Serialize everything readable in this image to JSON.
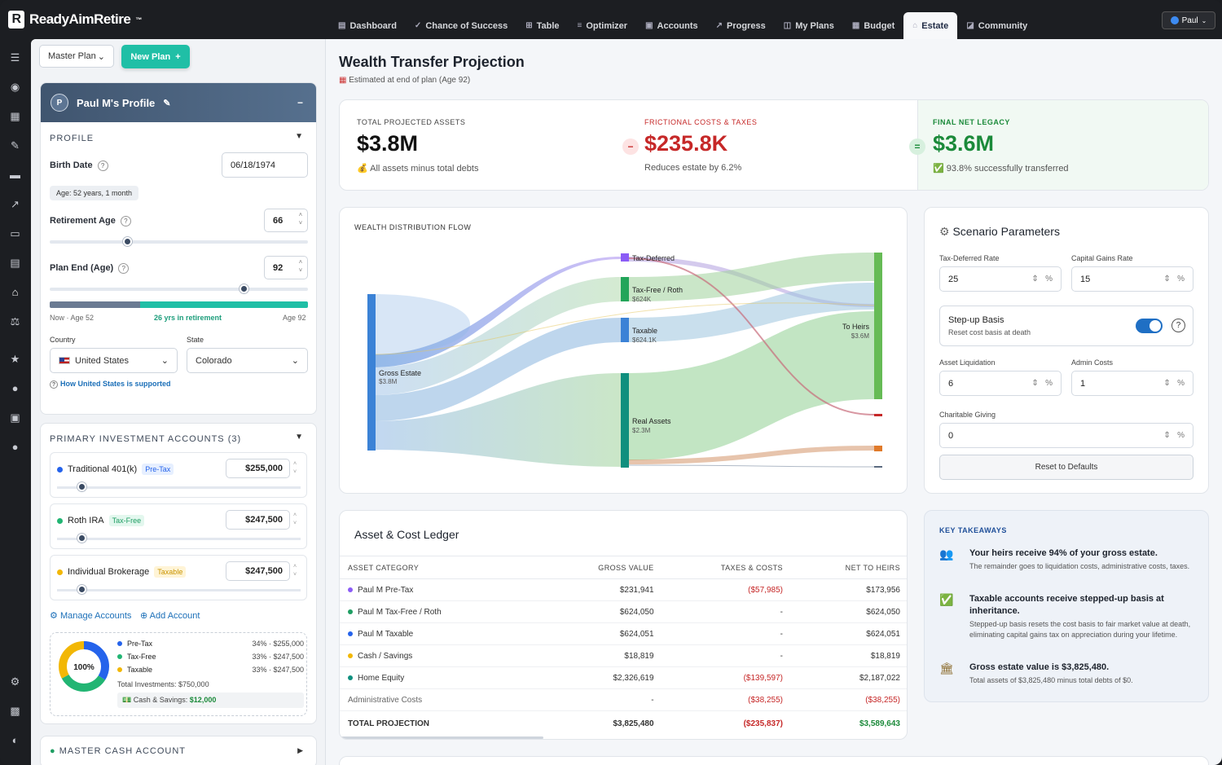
{
  "app": {
    "name": "ReadyAimRetire",
    "trademark": "™",
    "user": "Paul"
  },
  "nav": [
    {
      "icon": "▤",
      "label": "Dashboard"
    },
    {
      "icon": "✓",
      "label": "Chance of Success"
    },
    {
      "icon": "⊞",
      "label": "Table"
    },
    {
      "icon": "≡",
      "label": "Optimizer"
    },
    {
      "icon": "▣",
      "label": "Accounts"
    },
    {
      "icon": "↗",
      "label": "Progress"
    },
    {
      "icon": "◫",
      "label": "My Plans"
    },
    {
      "icon": "▦",
      "label": "Budget"
    },
    {
      "icon": "⌂",
      "label": "Estate"
    },
    {
      "icon": "◪",
      "label": "Community"
    }
  ],
  "sidebar": {
    "plan_select": "Master Plan",
    "new_plan": "New Plan",
    "profile": {
      "avatar": "P",
      "name": "Paul M's Profile",
      "section": "PROFILE",
      "birth_label": "Birth Date",
      "birth_value": "06/18/1974",
      "age": "Age: 52 years, 1 month",
      "retire_label": "Retirement Age",
      "retire_value": "66",
      "retire_fraction": 0.3,
      "planend_label": "Plan End (Age)",
      "planend_value": "92",
      "planend_fraction": 0.75,
      "timeline_now": "Now · Age 52",
      "timeline_mid": "26 yrs in retirement",
      "timeline_end": "Age 92",
      "country_label": "Country",
      "country_value": "United States",
      "state_label": "State",
      "state_value": "Colorado",
      "support_link": "How United States is supported"
    },
    "accounts": {
      "title": "PRIMARY INVESTMENT ACCOUNTS (3)",
      "items": [
        {
          "name": "Traditional 401(k)",
          "tag": "Pre-Tax",
          "amount": "$255,000",
          "color": "#2563eb",
          "tag_bg": "#e6efff",
          "tag_fg": "#2563eb",
          "fraction": 0.1
        },
        {
          "name": "Roth IRA",
          "tag": "Tax-Free",
          "amount": "$247,500",
          "color": "#22b573",
          "tag_bg": "#e3f7ee",
          "tag_fg": "#1f9e63",
          "fraction": 0.1
        },
        {
          "name": "Individual Brokerage",
          "tag": "Taxable",
          "amount": "$247,500",
          "color": "#f2b705",
          "tag_bg": "#fff4d6",
          "tag_fg": "#c99400",
          "fraction": 0.1
        }
      ],
      "manage": "Manage Accounts",
      "add": "Add Account",
      "donut_center": "100%",
      "legend": [
        {
          "label": "Pre-Tax",
          "value": "34% · $255,000",
          "color": "#2563eb"
        },
        {
          "label": "Tax-Free",
          "value": "33% · $247,500",
          "color": "#22b573"
        },
        {
          "label": "Taxable",
          "value": "33% · $247,500",
          "color": "#f2b705"
        }
      ],
      "total": "Total Investments: $750,000",
      "cash_label": "Cash & Savings:",
      "cash_value": "$12,000"
    },
    "cash_account": "MASTER CASH ACCOUNT"
  },
  "page": {
    "title": "Wealth Transfer Projection",
    "subtitle": "Estimated at end of plan (Age 92)"
  },
  "kpis": {
    "total_label": "TOTAL PROJECTED ASSETS",
    "total_value": "$3.8M",
    "total_sub": "All assets minus total debts",
    "costs_label": "FRICTIONAL COSTS & TAXES",
    "costs_value": "$235.8K",
    "costs_sub": "Reduces estate by 6.2%",
    "net_label": "FINAL NET LEGACY",
    "net_value": "$3.6M",
    "net_sub": "93.8% successfully transferred"
  },
  "flow": {
    "title": "WEALTH DISTRIBUTION FLOW",
    "source": {
      "name": "Gross Estate",
      "value": "$3.8M"
    },
    "nodes": [
      {
        "name": "Tax-Deferred",
        "value": ""
      },
      {
        "name": "Tax-Free / Roth",
        "value": "$624K"
      },
      {
        "name": "Taxable",
        "value": "$624.1K"
      },
      {
        "name": "Real Assets",
        "value": "$2.3M"
      }
    ],
    "sink": {
      "name": "To Heirs",
      "value": "$3.6M"
    }
  },
  "scenario": {
    "title": "Scenario Parameters",
    "fields": [
      {
        "label": "Tax-Deferred Rate",
        "value": "25",
        "unit": "%"
      },
      {
        "label": "Capital Gains Rate",
        "value": "15",
        "unit": "%"
      },
      {
        "label": "Asset Liquidation",
        "value": "6",
        "unit": "%"
      },
      {
        "label": "Admin Costs",
        "value": "1",
        "unit": "%"
      },
      {
        "label": "Charitable Giving",
        "value": "0",
        "unit": "%"
      }
    ],
    "stepup_title": "Step-up Basis",
    "stepup_sub": "Reset cost basis at death",
    "reset": "Reset to Defaults"
  },
  "ledger": {
    "title": "Asset & Cost Ledger",
    "headers": [
      "ASSET CATEGORY",
      "GROSS VALUE",
      "TAXES & COSTS",
      "NET TO HEIRS"
    ],
    "rows": [
      {
        "name": "Paul M Pre-Tax",
        "dot": "#8b5cf6",
        "gross": "$231,941",
        "cost": "($57,985)",
        "net": "$173,956"
      },
      {
        "name": "Paul M Tax-Free / Roth",
        "dot": "#1f9e63",
        "gross": "$624,050",
        "cost": "-",
        "net": "$624,050"
      },
      {
        "name": "Paul M Taxable",
        "dot": "#2563eb",
        "gross": "$624,051",
        "cost": "-",
        "net": "$624,051"
      },
      {
        "name": "Cash / Savings",
        "dot": "#f2b705",
        "gross": "$18,819",
        "cost": "-",
        "net": "$18,819"
      },
      {
        "name": "Home Equity",
        "dot": "#0f8f7e",
        "gross": "$2,326,619",
        "cost": "($139,597)",
        "net": "$2,187,022"
      },
      {
        "name": "Administrative Costs",
        "dot": "",
        "gross": "-",
        "cost": "($38,255)",
        "net": "($38,255)"
      }
    ],
    "total": {
      "name": "TOTAL PROJECTION",
      "gross": "$3,825,480",
      "cost": "($235,837)",
      "net": "$3,589,643"
    }
  },
  "takeaways": {
    "title": "KEY TAKEAWAYS",
    "items": [
      {
        "icon": "👥",
        "title": "Your heirs receive 94% of your gross estate.",
        "sub": "The remainder goes to liquidation costs, administrative costs, taxes."
      },
      {
        "icon": "✅",
        "title": "Taxable accounts receive stepped-up basis at inheritance.",
        "sub": "Stepped-up basis resets the cost basis to fair market value at death, eliminating capital gains tax on appreciation during your lifetime."
      },
      {
        "icon": "🏛",
        "title": "Gross estate value is $3,825,480.",
        "sub": "Total assets of $3,825,480 minus total debts of $0."
      }
    ]
  }
}
